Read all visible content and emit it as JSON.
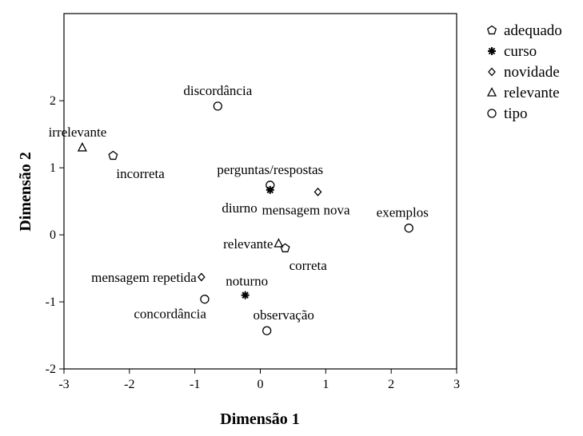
{
  "chart_data": {
    "type": "scatter",
    "title": "",
    "xlabel": "Dimensão 1",
    "ylabel": "Dimensão 2",
    "xlim": [
      -3,
      3
    ],
    "ylim": [
      -2,
      3.3
    ],
    "x_ticks": [
      "-3",
      "-2",
      "-1",
      "0",
      "1",
      "2",
      "3"
    ],
    "y_ticks": [
      "-2",
      "-1",
      "0",
      "1",
      "2"
    ],
    "grid": false,
    "legend_position": "right",
    "series": [
      {
        "name": "adequado",
        "marker": "pentagon",
        "points": [
          {
            "x": -2.25,
            "y": 1.18,
            "label": "incorreta"
          },
          {
            "x": 0.38,
            "y": -0.2,
            "label": "correta"
          }
        ]
      },
      {
        "name": "curso",
        "marker": "asterisk",
        "points": [
          {
            "x": 0.15,
            "y": 0.67,
            "label": "diurno"
          },
          {
            "x": -0.23,
            "y": -0.9,
            "label": "noturno"
          }
        ]
      },
      {
        "name": "novidade",
        "marker": "diamond",
        "points": [
          {
            "x": 0.88,
            "y": 0.64,
            "label": "mensagem nova"
          },
          {
            "x": -0.9,
            "y": -0.63,
            "label": "mensagem repetida"
          }
        ]
      },
      {
        "name": "relevante",
        "marker": "triangle",
        "points": [
          {
            "x": -2.72,
            "y": 1.3,
            "label": "irrelevante"
          },
          {
            "x": 0.28,
            "y": -0.13,
            "label": "relevante"
          }
        ]
      },
      {
        "name": "tipo",
        "marker": "circle",
        "points": [
          {
            "x": -0.65,
            "y": 1.92,
            "label": "discordância"
          },
          {
            "x": 0.15,
            "y": 0.74,
            "label": "perguntas/respostas"
          },
          {
            "x": 2.27,
            "y": 0.1,
            "label": "exemplos"
          },
          {
            "x": -0.85,
            "y": -0.96,
            "label": "concordância"
          },
          {
            "x": 0.1,
            "y": -1.43,
            "label": "observação"
          }
        ]
      }
    ]
  }
}
